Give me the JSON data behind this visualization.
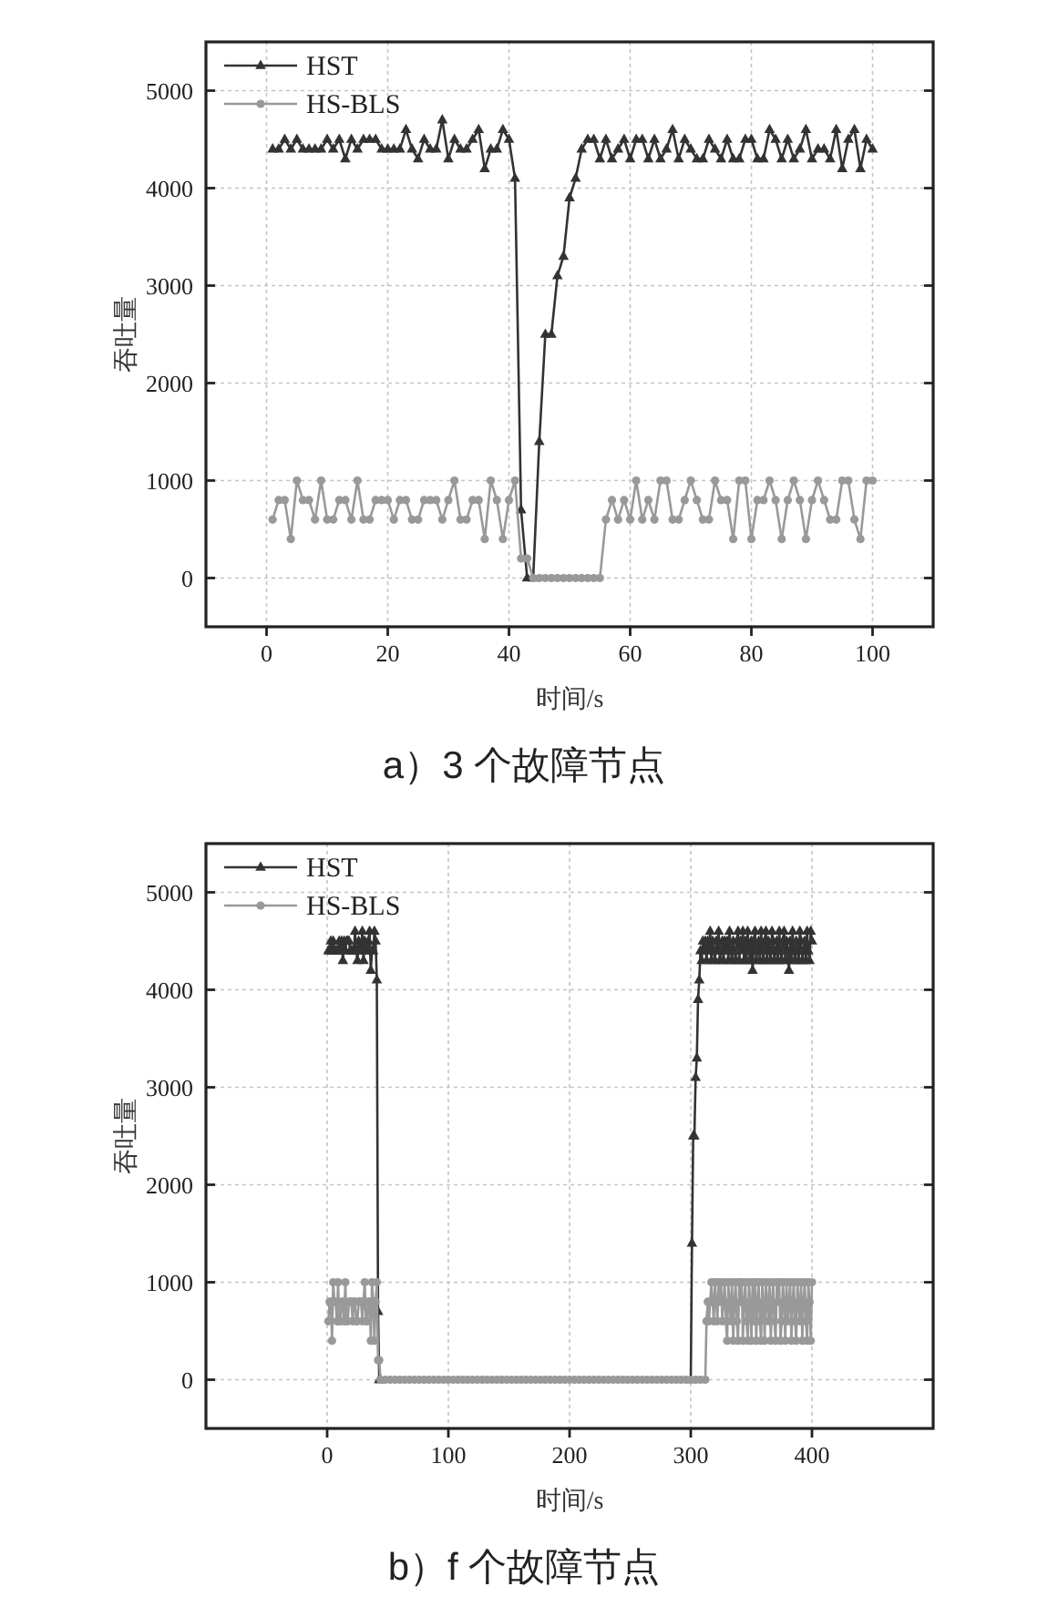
{
  "chart_data": [
    {
      "type": "line",
      "title": "a）3 个故障节点",
      "xlabel": "时间/s",
      "ylabel": "吞吐量",
      "xlim": [
        -10,
        110
      ],
      "xticks": [
        0,
        20,
        40,
        60,
        80,
        100
      ],
      "ylim": [
        -500,
        5500
      ],
      "yticks": [
        0,
        1000,
        2000,
        3000,
        4000,
        5000
      ],
      "grid": true,
      "legend": "top left",
      "x": [
        1,
        2,
        3,
        4,
        5,
        6,
        7,
        8,
        9,
        10,
        11,
        12,
        13,
        14,
        15,
        16,
        17,
        18,
        19,
        20,
        21,
        22,
        23,
        24,
        25,
        26,
        27,
        28,
        29,
        30,
        31,
        32,
        33,
        34,
        35,
        36,
        37,
        38,
        39,
        40,
        41,
        42,
        43,
        44,
        45,
        46,
        47,
        48,
        49,
        50,
        51,
        52,
        53,
        54,
        55,
        56,
        57,
        58,
        59,
        60,
        61,
        62,
        63,
        64,
        65,
        66,
        67,
        68,
        69,
        70,
        71,
        72,
        73,
        74,
        75,
        76,
        77,
        78,
        79,
        80,
        81,
        82,
        83,
        84,
        85,
        86,
        87,
        88,
        89,
        90,
        91,
        92,
        93,
        94,
        95,
        96,
        97,
        98,
        99,
        100
      ],
      "series": [
        {
          "name": "HST",
          "color": "#333333",
          "marker": "triangle",
          "values": [
            4400,
            4400,
            4500,
            4400,
            4500,
            4400,
            4400,
            4400,
            4400,
            4500,
            4400,
            4500,
            4300,
            4500,
            4400,
            4500,
            4500,
            4500,
            4400,
            4400,
            4400,
            4400,
            4600,
            4400,
            4300,
            4500,
            4400,
            4400,
            4700,
            4300,
            4500,
            4400,
            4400,
            4500,
            4600,
            4200,
            4400,
            4400,
            4600,
            4500,
            4100,
            700,
            0,
            0,
            1400,
            2500,
            2500,
            3100,
            3300,
            3900,
            4100,
            4400,
            4500,
            4500,
            4300,
            4500,
            4300,
            4400,
            4500,
            4300,
            4500,
            4500,
            4300,
            4500,
            4300,
            4400,
            4600,
            4300,
            4500,
            4400,
            4300,
            4300,
            4500,
            4400,
            4300,
            4500,
            4300,
            4300,
            4500,
            4500,
            4300,
            4300,
            4600,
            4500,
            4300,
            4500,
            4300,
            4400,
            4600,
            4300,
            4400,
            4400,
            4300,
            4600,
            4200,
            4500,
            4600,
            4200,
            4500,
            4400
          ]
        },
        {
          "name": "HS-BLS",
          "color": "#999999",
          "marker": "circle",
          "values": [
            600,
            800,
            800,
            400,
            1000,
            800,
            800,
            600,
            1000,
            600,
            600,
            800,
            800,
            600,
            1000,
            600,
            600,
            800,
            800,
            800,
            600,
            800,
            800,
            600,
            600,
            800,
            800,
            800,
            600,
            800,
            1000,
            600,
            600,
            800,
            800,
            400,
            1000,
            800,
            400,
            800,
            1000,
            200,
            200,
            0,
            0,
            0,
            0,
            0,
            0,
            0,
            0,
            0,
            0,
            0,
            0,
            600,
            800,
            600,
            800,
            600,
            1000,
            600,
            800,
            600,
            1000,
            1000,
            600,
            600,
            800,
            1000,
            800,
            600,
            600,
            1000,
            800,
            800,
            400,
            1000,
            1000,
            400,
            800,
            800,
            1000,
            800,
            400,
            800,
            1000,
            800,
            400,
            800,
            1000,
            800,
            600,
            600,
            1000,
            1000,
            600,
            400,
            1000,
            1000
          ]
        }
      ]
    },
    {
      "type": "line",
      "title": "b）f 个故障节点",
      "xlabel": "时间/s",
      "ylabel": "吞吐量",
      "xlim": [
        -100,
        500
      ],
      "xticks": [
        0,
        100,
        200,
        300,
        400
      ],
      "ylim": [
        -500,
        5500
      ],
      "yticks": [
        0,
        1000,
        2000,
        3000,
        4000,
        5000
      ],
      "grid": true,
      "legend": "top left",
      "series": [
        {
          "name": "HST",
          "color": "#333333",
          "marker": "triangle",
          "x": [
            1,
            2,
            3,
            4,
            5,
            6,
            7,
            8,
            9,
            10,
            11,
            12,
            13,
            14,
            15,
            16,
            17,
            18,
            19,
            20,
            21,
            22,
            23,
            24,
            25,
            26,
            27,
            28,
            29,
            30,
            31,
            32,
            33,
            34,
            35,
            36,
            37,
            38,
            39,
            40,
            41,
            42,
            43,
            44,
            300,
            301,
            302,
            303,
            304,
            305,
            306,
            307,
            308,
            309,
            310,
            311,
            312,
            313,
            314,
            315,
            316,
            317,
            318,
            319,
            320,
            321,
            322,
            323,
            324,
            325,
            326,
            327,
            328,
            329,
            330,
            331,
            332,
            333,
            334,
            335,
            336,
            337,
            338,
            339,
            340,
            341,
            342,
            343,
            344,
            345,
            346,
            347,
            348,
            349,
            350,
            351,
            352,
            353,
            354,
            355,
            356,
            357,
            358,
            359,
            360,
            361,
            362,
            363,
            364,
            365,
            366,
            367,
            368,
            369,
            370,
            371,
            372,
            373,
            374,
            375,
            376,
            377,
            378,
            379,
            380,
            381,
            382,
            383,
            384,
            385,
            386,
            387,
            388,
            389,
            390,
            391,
            392,
            393,
            394,
            395,
            396,
            397,
            398,
            399,
            400
          ],
          "values": [
            4400,
            4400,
            4500,
            4400,
            4500,
            4400,
            4400,
            4400,
            4400,
            4500,
            4400,
            4500,
            4300,
            4500,
            4400,
            4500,
            4500,
            4500,
            4400,
            4400,
            4400,
            4400,
            4600,
            4400,
            4300,
            4500,
            4400,
            4400,
            4600,
            4300,
            4500,
            4400,
            4400,
            4500,
            4600,
            4200,
            4400,
            4400,
            4600,
            4500,
            4100,
            700,
            0,
            0,
            0,
            1400,
            2500,
            2500,
            3100,
            3300,
            3900,
            4100,
            4400,
            4300,
            4500,
            4400,
            4500,
            4300,
            4500,
            4400,
            4600,
            4300,
            4500,
            4400,
            4300,
            4500,
            4400,
            4600,
            4300,
            4400,
            4500,
            4300,
            4500,
            4400,
            4500,
            4300,
            4600,
            4400,
            4300,
            4500,
            4400,
            4300,
            4500,
            4600,
            4300,
            4500,
            4400,
            4600,
            4300,
            4500,
            4300,
            4600,
            4400,
            4300,
            4500,
            4200,
            4500,
            4600,
            4300,
            4400,
            4500,
            4300,
            4600,
            4400,
            4300,
            4500,
            4600,
            4300,
            4500,
            4400,
            4300,
            4600,
            4500,
            4300,
            4400,
            4500,
            4300,
            4600,
            4400,
            4300,
            4500,
            4600,
            4300,
            4500,
            4400,
            4200,
            4500,
            4300,
            4600,
            4400,
            4300,
            4500,
            4400,
            4300,
            4600,
            4500,
            4300,
            4400,
            4500,
            4300,
            4600,
            4400,
            4300,
            4600,
            4500
          ]
        },
        {
          "name": "HS-BLS",
          "color": "#999999",
          "marker": "circle",
          "x": [
            1,
            2,
            3,
            4,
            5,
            6,
            7,
            8,
            9,
            10,
            11,
            12,
            13,
            14,
            15,
            16,
            17,
            18,
            19,
            20,
            21,
            22,
            23,
            24,
            25,
            26,
            27,
            28,
            29,
            30,
            31,
            32,
            33,
            34,
            35,
            36,
            37,
            38,
            39,
            40,
            41,
            42,
            43,
            44,
            48,
            52,
            56,
            60,
            64,
            68,
            72,
            76,
            80,
            84,
            88,
            92,
            96,
            100,
            104,
            108,
            112,
            116,
            120,
            124,
            128,
            132,
            136,
            140,
            144,
            148,
            152,
            156,
            160,
            164,
            168,
            172,
            176,
            180,
            184,
            188,
            192,
            196,
            200,
            204,
            208,
            212,
            216,
            220,
            224,
            228,
            232,
            236,
            240,
            244,
            248,
            252,
            256,
            260,
            264,
            268,
            272,
            276,
            280,
            284,
            288,
            292,
            296,
            300,
            304,
            308,
            312,
            313,
            314,
            315,
            316,
            317,
            318,
            319,
            320,
            321,
            322,
            323,
            324,
            325,
            326,
            327,
            328,
            329,
            330,
            331,
            332,
            333,
            334,
            335,
            336,
            337,
            338,
            339,
            340,
            341,
            342,
            343,
            344,
            345,
            346,
            347,
            348,
            349,
            350,
            351,
            352,
            353,
            354,
            355,
            356,
            357,
            358,
            359,
            360,
            361,
            362,
            363,
            364,
            365,
            366,
            367,
            368,
            369,
            370,
            371,
            372,
            373,
            374,
            375,
            376,
            377,
            378,
            379,
            380,
            381,
            382,
            383,
            384,
            385,
            386,
            387,
            388,
            389,
            390,
            391,
            392,
            393,
            394,
            395,
            396,
            397,
            398,
            399,
            400
          ],
          "values": [
            600,
            800,
            800,
            400,
            1000,
            800,
            800,
            600,
            1000,
            600,
            600,
            800,
            800,
            600,
            1000,
            600,
            600,
            800,
            800,
            800,
            600,
            800,
            800,
            600,
            600,
            800,
            800,
            800,
            600,
            800,
            1000,
            600,
            600,
            800,
            800,
            400,
            1000,
            800,
            400,
            800,
            1000,
            200,
            200,
            0,
            0,
            0,
            0,
            0,
            0,
            0,
            0,
            0,
            0,
            0,
            0,
            0,
            0,
            0,
            0,
            0,
            0,
            0,
            0,
            0,
            0,
            0,
            0,
            0,
            0,
            0,
            0,
            0,
            0,
            0,
            0,
            0,
            0,
            0,
            0,
            0,
            0,
            0,
            0,
            0,
            0,
            0,
            0,
            0,
            0,
            0,
            0,
            0,
            0,
            0,
            0,
            0,
            0,
            0,
            0,
            0,
            0,
            0,
            0,
            0,
            0,
            0,
            0,
            0,
            0,
            0,
            0,
            600,
            800,
            600,
            800,
            1000,
            800,
            600,
            1000,
            800,
            600,
            1000,
            800,
            1000,
            600,
            800,
            1000,
            600,
            400,
            1000,
            800,
            600,
            1000,
            400,
            800,
            1000,
            600,
            400,
            1000,
            800,
            1000,
            400,
            800,
            1000,
            600,
            400,
            1000,
            800,
            400,
            1000,
            600,
            1000,
            400,
            800,
            1000,
            600,
            400,
            1000,
            800,
            400,
            1000,
            800,
            600,
            1000,
            400,
            800,
            1000,
            600,
            400,
            1000,
            800,
            1000,
            400,
            600,
            1000,
            800,
            400,
            1000,
            600,
            800,
            1000,
            400,
            800,
            1000,
            600,
            400,
            1000,
            800,
            600,
            1000,
            400,
            800,
            1000,
            600,
            400,
            1000,
            800,
            400,
            1000
          ]
        }
      ]
    }
  ]
}
